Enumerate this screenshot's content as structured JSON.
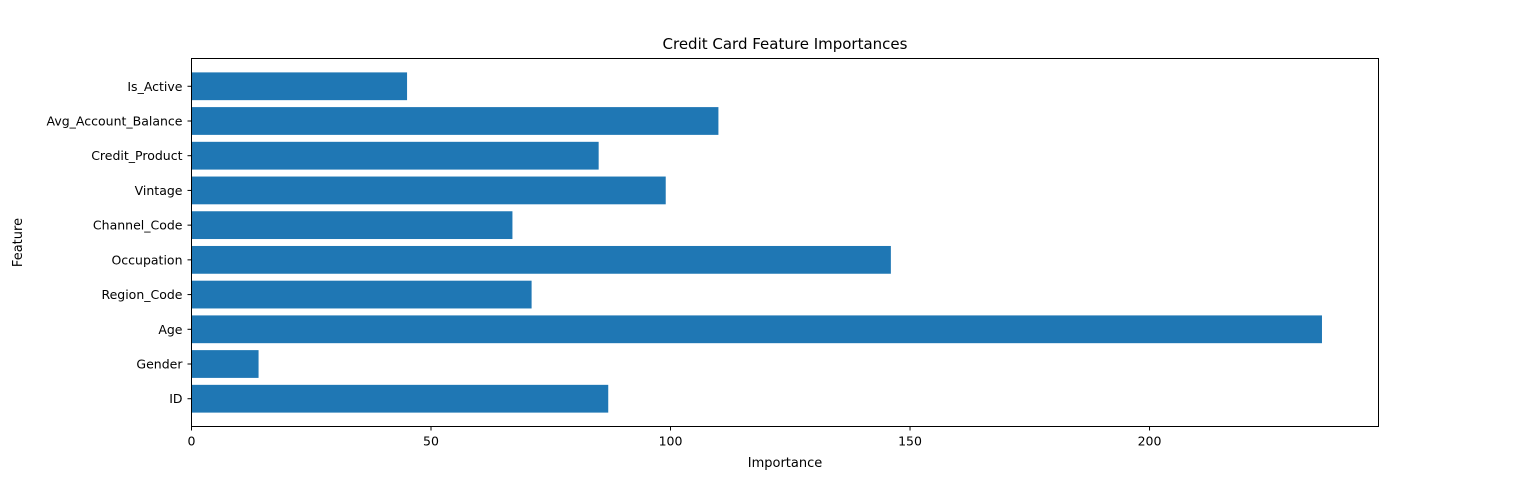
{
  "colors": {
    "bar": "#1f77b4",
    "axis": "#000000",
    "background": "#ffffff"
  },
  "chart_data": {
    "type": "bar",
    "orientation": "horizontal",
    "title": "Credit Card Feature Importances",
    "xlabel": "Importance",
    "ylabel": "Feature",
    "categories": [
      "ID",
      "Gender",
      "Age",
      "Region_Code",
      "Occupation",
      "Channel_Code",
      "Vintage",
      "Credit_Product",
      "Avg_Account_Balance",
      "Is_Active"
    ],
    "values": [
      87,
      14,
      236,
      71,
      146,
      67,
      99,
      85,
      110,
      45
    ],
    "xlim": [
      0,
      247.8
    ],
    "xticks": [
      0,
      50,
      100,
      150,
      200
    ],
    "grid": false,
    "legend": "none"
  }
}
